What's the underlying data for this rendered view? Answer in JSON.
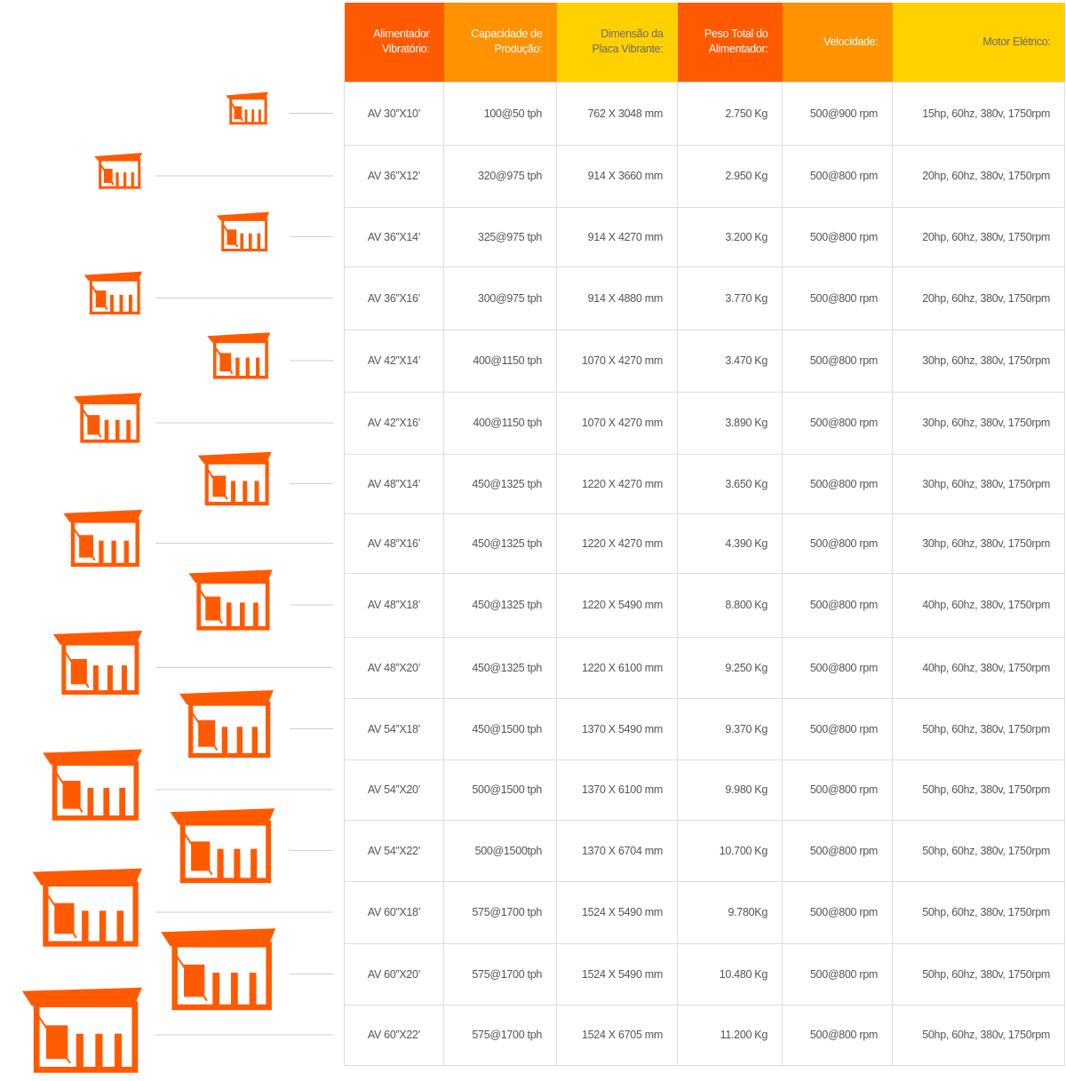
{
  "header": {
    "columns": [
      [
        "Alimentador",
        "Vibratório:"
      ],
      [
        "Capacidade de",
        "Produção:"
      ],
      [
        "Dimensão da",
        "Placa Vibrante:"
      ],
      [
        "Peso Total do",
        "Alimentador:"
      ],
      [
        "Velocidade:"
      ],
      [
        "Motor Elétrico:"
      ]
    ]
  },
  "table": {
    "rows": [
      [
        "AV 30”X10’",
        "100@50 tph",
        "762 X 3048 mm",
        "2.750 Kg",
        "500@900 rpm",
        "15hp, 60hz, 380v, 1750rpm"
      ],
      [
        "AV 36”X12’",
        "320@975 tph",
        "914 X 3660 mm",
        "2.950 Kg",
        "500@800 rpm",
        "20hp, 60hz, 380v, 1750rpm"
      ],
      [
        "AV 36”X14’",
        "325@975 tph",
        "914 X 4270 mm",
        "3.200 Kg",
        "500@800 rpm",
        "20hp, 60hz, 380v, 1750rpm"
      ],
      [
        "AV 36”X16’",
        "300@975 tph",
        "914 X 4880 mm",
        "3.770 Kg",
        "500@800 rpm",
        "20hp, 60hz, 380v, 1750rpm"
      ],
      [
        "AV 42”X14’",
        "400@1150 tph",
        "1070 X 4270 mm",
        "3.470 Kg",
        "500@800 rpm",
        "30hp, 60hz, 380v, 1750rpm"
      ],
      [
        "AV 42”X16’",
        "400@1150 tph",
        "1070 X 4270 mm",
        "3.890 Kg",
        "500@800 rpm",
        "30hp, 60hz, 380v, 1750rpm"
      ],
      [
        "AV 48”X14’",
        "450@1325 tph",
        "1220 X 4270 mm",
        "3.650 Kg",
        "500@800 rpm",
        "30hp, 60hz, 380v, 1750rpm"
      ],
      [
        "AV 48”X16’",
        "450@1325 tph",
        "1220 X 4270 mm",
        "4.390 Kg",
        "500@800 rpm",
        "30hp, 60hz, 380v, 1750rpm"
      ],
      [
        "AV 48”X18’",
        "450@1325 tph",
        "1220 X 5490 mm",
        "8.800 Kg",
        "500@800 rpm",
        "40hp, 60hz, 380v, 1750rpm"
      ],
      [
        "AV 48”X20’",
        "450@1325 tph",
        "1220 X 6100 mm",
        "9.250 Kg",
        "500@800 rpm",
        "40hp, 60hz, 380v, 1750rpm"
      ],
      [
        "AV 54”X18’",
        "450@1500 tph",
        "1370 X 5490 mm",
        "9.370 Kg",
        "500@800 rpm",
        "50hp, 60hz, 380v, 1750rpm"
      ],
      [
        "AV 54”X20’",
        "500@1500 tph",
        "1370 X 6100 mm",
        "9.980 Kg",
        "500@800 rpm",
        "50hp, 60hz, 380v, 1750rpm"
      ],
      [
        "AV 54”X22’",
        "500@1500tph",
        "1370 X 6704 mm",
        "10.700 Kg",
        "500@800 rpm",
        "50hp, 60hz, 380v, 1750rpm"
      ],
      [
        "AV 60”X18’",
        "575@1700 tph",
        "1524 X 5490 mm",
        "9.780Kg",
        "500@800 rpm",
        "50hp, 60hz, 380v, 1750rpm"
      ],
      [
        "AV 60”X20’",
        "575@1700 tph",
        "1524 X 5490 mm",
        "10.480 Kg",
        "500@800 rpm",
        "50hp, 60hz, 380v, 1750rpm"
      ],
      [
        "AV 60”X22’",
        "575@1700 tph",
        "1524 X 6705 mm",
        "11.200 Kg",
        "500@800 rpm",
        "50hp, 60hz, 380v, 1750rpm"
      ]
    ]
  }
}
